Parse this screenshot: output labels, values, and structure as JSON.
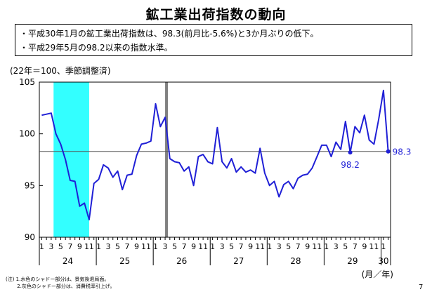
{
  "page": {
    "title": "鉱工業出荷指数の動向",
    "bullets": [
      "・平成30年1月の鉱工業出荷指数は、98.3(前月比-5.6%)と3か月ぶりの低下。",
      "・平成29年5月の98.2以来の指数水準。"
    ],
    "unit": "(22年＝100、季節調整済)",
    "axis_unit": "(月／年)",
    "notes": [
      "(注) 1.水色のシャドー部分は、景気後退局面。",
      "　　 2.灰色のシャドー部分は、消費税率引上げ。"
    ],
    "page_number": "7"
  },
  "chart_data": {
    "type": "line",
    "ylim": [
      90,
      105
    ],
    "yticks": [
      90,
      95,
      100,
      105
    ],
    "month_tick_labels": [
      "1",
      "3",
      "5",
      "7",
      "9",
      "11"
    ],
    "years": [
      "24",
      "25",
      "26",
      "27",
      "28",
      "29",
      "30"
    ],
    "series": [
      {
        "values": [
          101.8,
          101.9,
          102.0,
          100.0,
          99.0,
          97.5,
          95.5,
          95.4,
          93.0,
          93.3,
          91.7,
          95.2,
          95.6,
          97.0,
          96.7,
          95.8,
          96.4,
          94.6,
          96.0,
          96.1,
          97.9,
          99.0,
          99.1,
          99.3,
          102.9,
          100.7,
          101.6,
          97.6,
          97.3,
          97.2,
          96.4,
          96.8,
          95.0,
          97.8,
          98.0,
          97.3,
          97.1,
          100.6,
          97.3,
          96.7,
          97.6,
          96.3,
          96.8,
          96.3,
          96.5,
          96.2,
          98.6,
          96.2,
          95.0,
          95.4,
          93.9,
          95.1,
          95.4,
          94.7,
          95.7,
          96.0,
          96.1,
          96.7,
          97.8,
          98.9,
          98.9,
          97.8,
          99.2,
          98.5,
          101.2,
          98.2,
          100.7,
          100.1,
          101.8,
          99.4,
          99.0,
          101.4,
          104.2,
          98.3
        ]
      }
    ],
    "reference_line": 98.3,
    "annotations": [
      {
        "label": "98.2",
        "x_index": 65,
        "value": 98.2
      },
      {
        "label": "98.3",
        "x_index": 73,
        "value": 98.3
      }
    ],
    "shading": [
      {
        "kind": "recession",
        "color": "#33ffff",
        "from_index": 3,
        "to_index": 10.5
      },
      {
        "kind": "tax_increase",
        "color": "#808080",
        "from_index": 26.5,
        "to_index": 27.1
      }
    ],
    "colors": {
      "line": "#1f1fd6",
      "reference": "#555555"
    }
  }
}
